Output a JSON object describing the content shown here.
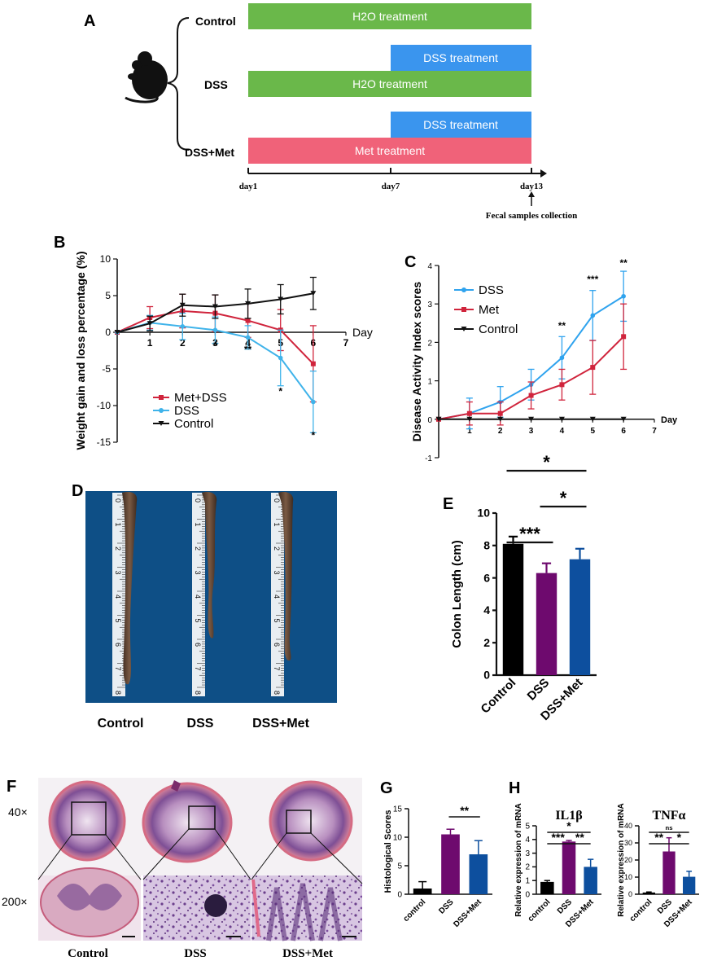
{
  "panel_a": {
    "letter": "A",
    "groups": [
      "Control",
      "DSS",
      "DSS+Met"
    ],
    "bars": {
      "control_h2o": "H2O treatment",
      "dss_dss": "DSS treatment",
      "dss_h2o": "H2O treatment",
      "met_dss": "DSS treatment",
      "met_met": "Met treatment"
    },
    "days": [
      "day1",
      "day7",
      "day13"
    ],
    "collection_label": "Fecal samples collection",
    "colors": {
      "h2o": "#6ab84a",
      "dss": "#3a95ee",
      "met": "#f06279"
    }
  },
  "panel_b": {
    "letter": "B"
  },
  "panel_c": {
    "letter": "C"
  },
  "panel_d": {
    "letter": "D",
    "labels": [
      "Control",
      "DSS",
      "DSS+Met"
    ],
    "ruler_numbers": [
      "0",
      "1",
      "2",
      "3",
      "4",
      "5",
      "6",
      "7",
      "8"
    ]
  },
  "panel_e": {
    "letter": "E"
  },
  "panel_f": {
    "letter": "F",
    "mag_low": "40×",
    "mag_high": "200×",
    "labels": [
      "Control",
      "DSS",
      "DSS+Met"
    ]
  },
  "panel_g": {
    "letter": "G"
  },
  "panel_h": {
    "letter": "H"
  },
  "chart_data": [
    {
      "id": "weight",
      "type": "line",
      "ylabel": "Weight gain and loss percentage (%)",
      "xlabel": "Day",
      "x": [
        0,
        1,
        2,
        3,
        4,
        5,
        6
      ],
      "xticks": [
        "1",
        "2",
        "3",
        "4",
        "5",
        "6",
        "7"
      ],
      "yticks": [
        "10",
        "5",
        "0",
        "-5",
        "-10",
        "-15"
      ],
      "ylim": [
        -15,
        10
      ],
      "xlim": [
        0,
        7
      ],
      "series": [
        {
          "name": "Met+DSS",
          "color": "#d0243c",
          "values": [
            0,
            2.0,
            2.9,
            2.6,
            1.6,
            0.3,
            -4.3
          ],
          "err": [
            0,
            1.5,
            2.3,
            2.5,
            2.3,
            2.8,
            5.2
          ]
        },
        {
          "name": "DSS",
          "color": "#3fb3ea",
          "values": [
            0,
            1.3,
            0.8,
            0.3,
            -0.7,
            -3.5,
            -9.5
          ],
          "err": [
            0,
            1.0,
            1.8,
            1.8,
            1.6,
            3.8,
            4.2
          ]
        },
        {
          "name": "Control",
          "color": "#111111",
          "values": [
            0,
            1.2,
            3.7,
            3.5,
            3.9,
            4.5,
            5.3
          ],
          "err": [
            0,
            1.0,
            1.5,
            1.6,
            2.0,
            2.0,
            2.2
          ]
        }
      ],
      "annotations": [
        {
          "x": 3,
          "y": -2.2,
          "text": "*"
        },
        {
          "x": 4,
          "y": -2.8,
          "text": "**"
        },
        {
          "x": 5,
          "y": -8.5,
          "text": "*"
        },
        {
          "x": 6,
          "y": -14.5,
          "text": "*"
        }
      ]
    },
    {
      "id": "dai",
      "type": "line",
      "ylabel": "Disease Activity Index scores",
      "xlabel": "Day",
      "x": [
        0,
        1,
        2,
        3,
        4,
        5,
        6
      ],
      "xticks": [
        "1",
        "2",
        "3",
        "4",
        "5",
        "6",
        "7"
      ],
      "yticks": [
        "4",
        "3",
        "2",
        "1",
        "0",
        "-1"
      ],
      "ylim": [
        -1,
        4
      ],
      "xlim": [
        0,
        7
      ],
      "series": [
        {
          "name": "DSS",
          "color": "#2fa3ee",
          "values": [
            0,
            0.15,
            0.45,
            0.9,
            1.6,
            2.7,
            3.2
          ],
          "err": [
            0,
            0.4,
            0.4,
            0.4,
            0.55,
            0.65,
            0.65
          ]
        },
        {
          "name": "Met",
          "color": "#d0243c",
          "values": [
            0,
            0.15,
            0.15,
            0.62,
            0.9,
            1.35,
            2.15
          ],
          "err": [
            0,
            0.3,
            0.3,
            0.35,
            0.4,
            0.7,
            0.85
          ]
        },
        {
          "name": "Control",
          "color": "#111111",
          "values": [
            0,
            0,
            0,
            0,
            0,
            0,
            0
          ],
          "err": [
            0,
            0,
            0,
            0,
            0,
            0,
            0
          ]
        }
      ],
      "annotations": [
        {
          "x": 4,
          "y": 2.35,
          "text": "**"
        },
        {
          "x": 5,
          "y": 3.55,
          "text": "***"
        },
        {
          "x": 6,
          "y": 3.98,
          "text": "**"
        }
      ]
    },
    {
      "id": "colon",
      "type": "bar",
      "ylabel": "Colon Length (cm)",
      "categories": [
        "Control",
        "DSS",
        "DSS+Met"
      ],
      "values": [
        8.1,
        6.3,
        7.15
      ],
      "err": [
        0.45,
        0.6,
        0.65
      ],
      "colors": [
        "#000000",
        "#6e0a6e",
        "#0d4f9e"
      ],
      "yticks": [
        "0",
        "2",
        "4",
        "6",
        "8",
        "10"
      ],
      "ylim": [
        0,
        10
      ],
      "brackets": [
        {
          "from": 0,
          "to": 1,
          "text": "***",
          "level": 0
        },
        {
          "from": 1,
          "to": 2,
          "text": "*",
          "level": 1
        },
        {
          "from": 0,
          "to": 2,
          "text": "*",
          "level": 2
        }
      ]
    },
    {
      "id": "histo",
      "type": "bar",
      "ylabel": "Histological Scores",
      "categories": [
        "control",
        "DSS",
        "DSS+Met"
      ],
      "values": [
        1.0,
        10.5,
        7.0
      ],
      "err": [
        1.2,
        0.9,
        2.4
      ],
      "colors": [
        "#000000",
        "#6e0a6e",
        "#0d4f9e"
      ],
      "yticks": [
        "0",
        "5",
        "10",
        "15"
      ],
      "ylim": [
        0,
        15
      ],
      "brackets": [
        {
          "from": 1,
          "to": 2,
          "text": "**",
          "level": 0
        }
      ]
    },
    {
      "id": "il1b",
      "type": "bar",
      "title": "IL1β",
      "ylabel": "Relative expression of mRNA",
      "categories": [
        "control",
        "DSS",
        "DSS+Met"
      ],
      "values": [
        0.9,
        3.85,
        2.0
      ],
      "err": [
        0.1,
        0.08,
        0.55
      ],
      "colors": [
        "#000000",
        "#6e0a6e",
        "#0d4f9e"
      ],
      "yticks": [
        "0",
        "1",
        "2",
        "3",
        "4",
        "5"
      ],
      "ylim": [
        0,
        5
      ],
      "brackets": [
        {
          "from": 0,
          "to": 1,
          "text": "***",
          "level": 0
        },
        {
          "from": 1,
          "to": 2,
          "text": "**",
          "level": 0
        },
        {
          "from": 0,
          "to": 2,
          "text": "*",
          "level": 1
        }
      ]
    },
    {
      "id": "tnfa",
      "type": "bar",
      "title": "TNFα",
      "ylabel": "Relative expression of mRNA",
      "categories": [
        "control",
        "DSS",
        "DSS+Met"
      ],
      "values": [
        1.0,
        25.0,
        10.2
      ],
      "err": [
        0.3,
        8.0,
        3.2
      ],
      "colors": [
        "#000000",
        "#6e0a6e",
        "#0d4f9e"
      ],
      "yticks": [
        "0",
        "10",
        "20",
        "30",
        "40"
      ],
      "ylim": [
        0,
        40
      ],
      "brackets": [
        {
          "from": 0,
          "to": 1,
          "text": "**",
          "level": 0
        },
        {
          "from": 1,
          "to": 2,
          "text": "*",
          "level": 0
        },
        {
          "from": 0,
          "to": 2,
          "text": "ns",
          "level": 1
        }
      ]
    }
  ]
}
